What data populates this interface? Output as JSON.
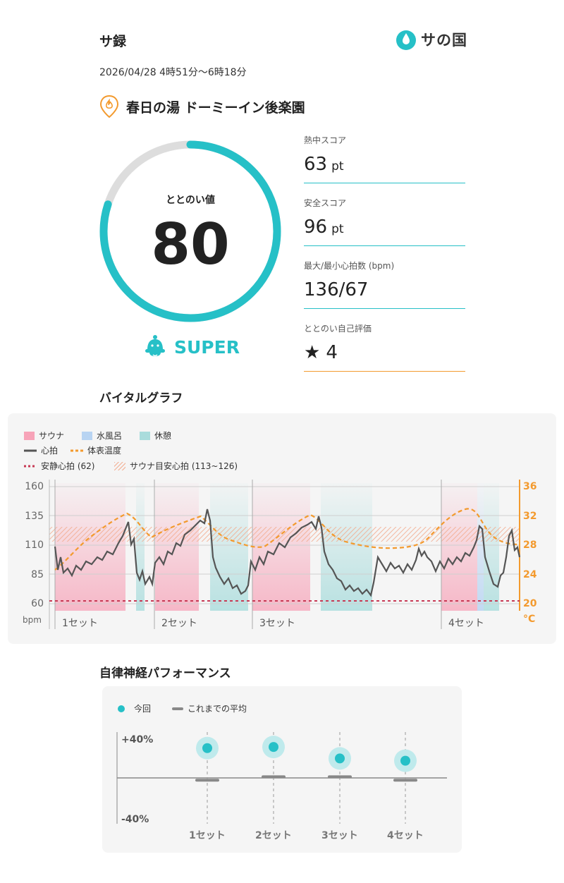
{
  "header": {
    "title": "サ録",
    "brand_text": "サの国",
    "datetime": "2026/04/28 4時51分〜6時18分",
    "facility": "春日の湯 ドーミーイン後楽園"
  },
  "summary": {
    "totonoi_label": "ととのい値",
    "totonoi_value": "80",
    "totonoi_progress": 0.8,
    "rank_label": "SUPER",
    "accent_color": "#26c0c7",
    "ring_track_color": "#dddddd"
  },
  "metrics": [
    {
      "label": "熱中スコア",
      "value": "63",
      "unit": "pt"
    },
    {
      "label": "安全スコア",
      "value": "96",
      "unit": "pt"
    },
    {
      "label": "最大/最小心拍数 (bpm)",
      "value": "136/67",
      "unit": ""
    },
    {
      "label": "ととのい自己評価",
      "value": "4",
      "unit": "",
      "icon": "star-icon"
    }
  ],
  "vital": {
    "section_title": "バイタルグラフ",
    "legend": {
      "sauna": "サウナ",
      "water_bath": "水風呂",
      "rest": "休憩",
      "heart_rate": "心拍",
      "body_temp": "体表温度",
      "resting_hr": "安静心拍 (62)",
      "target_hr": "サウナ目安心拍 (113~126)"
    },
    "colors": {
      "sauna": "#f7a3b8",
      "water_bath": "#b8d4f2",
      "rest": "#a9dcdc",
      "heart_rate": "#555555",
      "body_temp": "#f39a2e",
      "resting_hr": "#c83a55"
    },
    "left_axis_ticks": [
      "160",
      "135",
      "110",
      "85",
      "60"
    ],
    "left_axis_unit": "bpm",
    "right_axis_ticks": [
      "36",
      "32",
      "28",
      "24",
      "20"
    ],
    "right_axis_unit": "°C",
    "set_labels": [
      "1セット",
      "2セット",
      "3セット",
      "4セット"
    ]
  },
  "ans": {
    "section_title": "自律神経パフォーマンス",
    "legend_current": "今回",
    "legend_average": "これまでの平均",
    "y_ticks": [
      "+40%",
      "-40%"
    ],
    "sets": [
      "1セット",
      "2セット",
      "3セット",
      "4セット"
    ]
  },
  "chart_data": [
    {
      "type": "line",
      "title": "バイタルグラフ",
      "xlabel": "",
      "ylabel": "bpm",
      "ylim": [
        60,
        160
      ],
      "y2label": "°C",
      "y2lim": [
        20,
        36
      ],
      "x": [
        0,
        5,
        10,
        15,
        20,
        25,
        30,
        35,
        40,
        45,
        50,
        55,
        60,
        65,
        70,
        75,
        80,
        85,
        90,
        95,
        100
      ],
      "series": [
        {
          "name": "心拍",
          "axis": "left",
          "values": [
            108,
            90,
            98,
            106,
            114,
            121,
            128,
            88,
            86,
            110,
            120,
            126,
            131,
            136,
            108,
            90,
            80,
            75,
            70,
            95,
            110
          ]
        },
        {
          "name": "体表温度",
          "axis": "right",
          "values": [
            25.0,
            27.5,
            29.5,
            31.0,
            32.5,
            30.5,
            29.0,
            30.5,
            31.5,
            32.5,
            31.0,
            29.0,
            28.0,
            29.0,
            30.5,
            32.0,
            29.5,
            28.5,
            27.5,
            27.5,
            27.6
          ]
        }
      ],
      "reference_lines": [
        {
          "name": "安静心拍",
          "value": 62
        }
      ],
      "reference_band": {
        "name": "サウナ目安心拍",
        "range": [
          113,
          126
        ]
      },
      "grid": true,
      "legend": "top-left"
    },
    {
      "type": "scatter",
      "title": "自律神経パフォーマンス",
      "categories": [
        "1セット",
        "2セット",
        "3セット",
        "4セット"
      ],
      "ylim": [
        -40,
        40
      ],
      "series": [
        {
          "name": "今回",
          "values": [
            26,
            27,
            17,
            15
          ]
        },
        {
          "name": "これまでの平均",
          "values": [
            -2,
            1,
            1,
            -2
          ]
        }
      ],
      "grid": false,
      "legend": "top-left"
    }
  ]
}
